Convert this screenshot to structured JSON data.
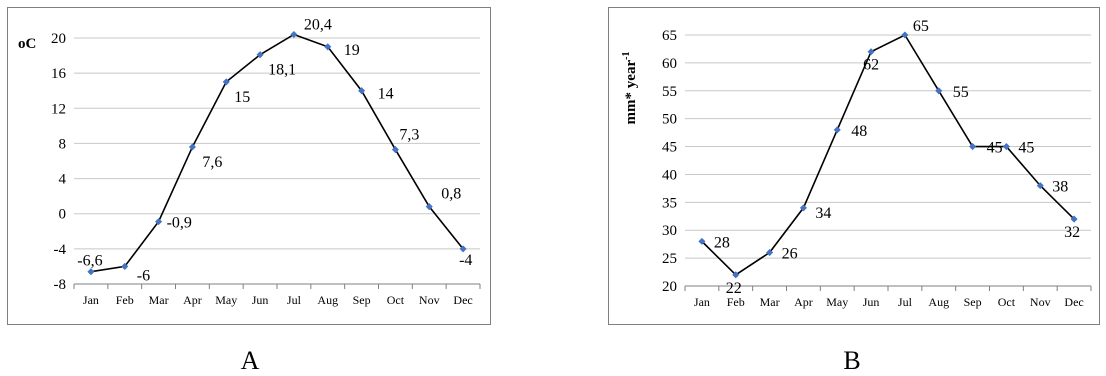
{
  "captions": {
    "a": "A",
    "b": "B"
  },
  "chart_data": [
    {
      "type": "line",
      "title": "",
      "xlabel": "",
      "ylabel": "oC",
      "categories": [
        "Jan",
        "Feb",
        "Mar",
        "Apr",
        "May",
        "Jun",
        "Jul",
        "Aug",
        "Sep",
        "Oct",
        "Nov",
        "Dec"
      ],
      "values": [
        -6.6,
        -6,
        -0.9,
        7.6,
        15,
        18.1,
        20.4,
        19,
        14,
        7.3,
        0.8,
        -4
      ],
      "data_labels": [
        "-6,6",
        "-6",
        "-0,9",
        "7,6",
        "15",
        "18,1",
        "20,4",
        "19",
        "14",
        "7,3",
        "0,8",
        "-4"
      ],
      "ylim": [
        -8,
        20
      ],
      "yticks": [
        "-8",
        "-4",
        "0",
        "4",
        "8",
        "12",
        "16",
        "20"
      ],
      "grid": true,
      "line_color": "#000000",
      "marker_color": "#4472c4"
    },
    {
      "type": "line",
      "title": "",
      "xlabel": "",
      "ylabel": "mm* year-1",
      "categories": [
        "Jan",
        "Feb",
        "Mar",
        "Apr",
        "May",
        "Jun",
        "Jul",
        "Aug",
        "Sep",
        "Oct",
        "Nov",
        "Dec"
      ],
      "values": [
        28,
        22,
        26,
        34,
        48,
        62,
        65,
        55,
        45,
        45,
        38,
        32
      ],
      "data_labels": [
        "28",
        "22",
        "26",
        "34",
        "48",
        "62",
        "65",
        "55",
        "45",
        "45",
        "38",
        "32"
      ],
      "ylim": [
        20,
        65
      ],
      "yticks": [
        "20",
        "25",
        "30",
        "35",
        "40",
        "45",
        "50",
        "55",
        "60",
        "65"
      ],
      "grid": true,
      "line_color": "#000000",
      "marker_color": "#4472c4"
    }
  ]
}
